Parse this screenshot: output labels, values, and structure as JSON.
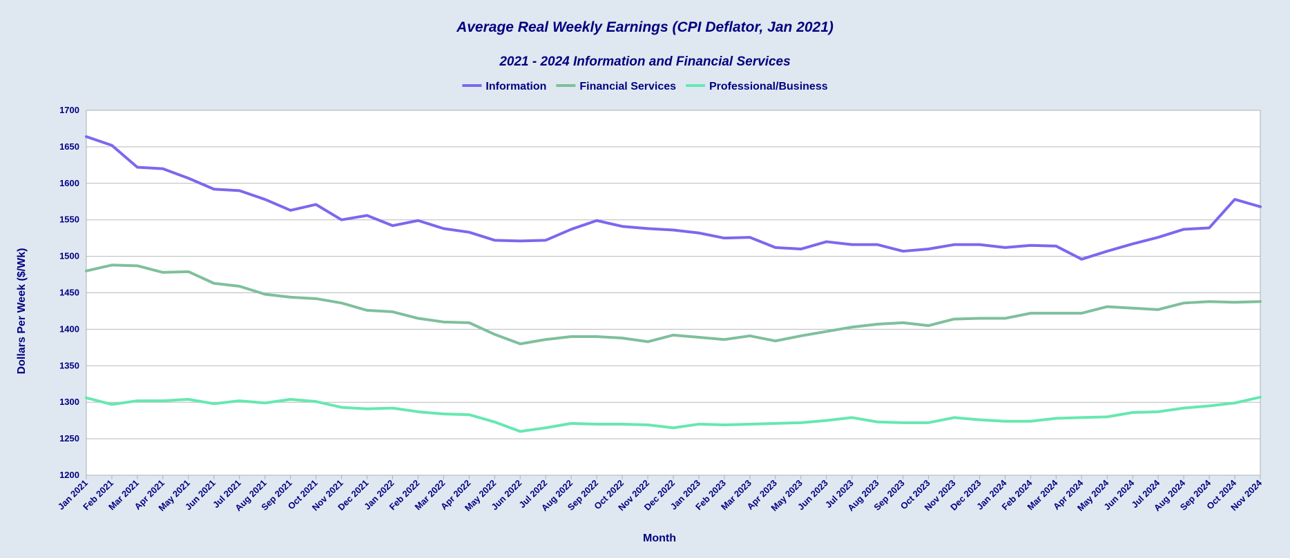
{
  "chart_data": {
    "type": "line",
    "title": "Average Real Weekly Earnings (CPI Deflator, Jan 2021)",
    "subtitle": "2021 - 2024 Information and Financial Services",
    "xlabel": "Month",
    "ylabel": "Dollars Per Week ($/Wk)",
    "ylim": [
      1200,
      1700
    ],
    "yticks": [
      1200,
      1250,
      1300,
      1350,
      1400,
      1450,
      1500,
      1550,
      1600,
      1650,
      1700
    ],
    "grid": true,
    "legend_position": "top-center",
    "categories": [
      "Jan 2021",
      "Feb 2021",
      "Mar 2021",
      "Apr 2021",
      "May 2021",
      "Jun 2021",
      "Jul 2021",
      "Aug 2021",
      "Sep 2021",
      "Oct 2021",
      "Nov 2021",
      "Dec 2021",
      "Jan 2022",
      "Feb 2022",
      "Mar 2022",
      "Apr 2022",
      "May 2022",
      "Jun 2022",
      "Jul 2022",
      "Aug 2022",
      "Sep 2022",
      "Oct 2022",
      "Nov 2022",
      "Dec 2022",
      "Jan 2023",
      "Feb 2023",
      "Mar 2023",
      "Apr 2023",
      "May 2023",
      "Jun 2023",
      "Jul 2023",
      "Aug 2023",
      "Sep 2023",
      "Oct 2023",
      "Nov 2023",
      "Dec 2023",
      "Jan 2024",
      "Feb 2024",
      "Mar 2024",
      "Apr 2024",
      "May 2024",
      "Jun 2024",
      "Jul 2024",
      "Aug 2024",
      "Sep 2024",
      "Oct 2024",
      "Nov 2024"
    ],
    "series": [
      {
        "name": "Information",
        "color": "#7b68ee",
        "values": [
          1664,
          1652,
          1622,
          1620,
          1607,
          1592,
          1590,
          1578,
          1563,
          1571,
          1550,
          1556,
          1542,
          1549,
          1538,
          1533,
          1522,
          1521,
          1522,
          1537,
          1549,
          1541,
          1538,
          1536,
          1532,
          1525,
          1526,
          1512,
          1510,
          1520,
          1516,
          1516,
          1507,
          1510,
          1516,
          1516,
          1512,
          1515,
          1514,
          1496,
          1507,
          1517,
          1526,
          1537,
          1539,
          1578,
          1568
        ]
      },
      {
        "name": "Financial Services",
        "color": "#7fbf9c",
        "values": [
          1480,
          1488,
          1487,
          1478,
          1479,
          1463,
          1459,
          1448,
          1444,
          1442,
          1436,
          1426,
          1424,
          1415,
          1410,
          1409,
          1393,
          1380,
          1386,
          1390,
          1390,
          1388,
          1383,
          1392,
          1389,
          1386,
          1391,
          1384,
          1391,
          1397,
          1403,
          1407,
          1409,
          1405,
          1414,
          1415,
          1415,
          1422,
          1422,
          1422,
          1431,
          1429,
          1427,
          1436,
          1438,
          1437,
          1438
        ]
      },
      {
        "name": "Professional/Business",
        "color": "#66e8b0",
        "values": [
          1306,
          1297,
          1302,
          1302,
          1304,
          1298,
          1302,
          1299,
          1304,
          1301,
          1293,
          1291,
          1292,
          1287,
          1284,
          1283,
          1273,
          1260,
          1265,
          1271,
          1270,
          1270,
          1269,
          1265,
          1270,
          1269,
          1270,
          1271,
          1272,
          1275,
          1279,
          1273,
          1272,
          1272,
          1279,
          1276,
          1274,
          1274,
          1278,
          1279,
          1280,
          1286,
          1287,
          1292,
          1295,
          1299,
          1307
        ]
      }
    ]
  }
}
